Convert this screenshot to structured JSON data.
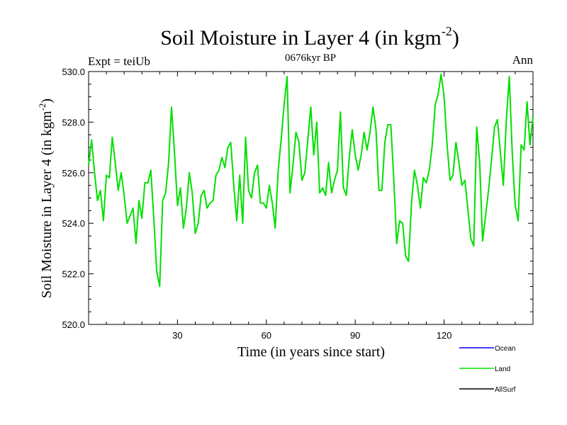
{
  "chart_data": {
    "type": "line",
    "title": "Soil Moisture in Layer 4 (in kgm",
    "title_sup": "-2",
    "title_close": ")",
    "subtitle_left": "Expt = teiUb",
    "subtitle_center": "0676kyr BP",
    "subtitle_right": "Ann",
    "xlabel": "Time (in years since start)",
    "ylabel": "Soil Moisture in Layer 4 (in kgm",
    "ylabel_sup": "-2",
    "ylabel_close": ")",
    "xlim": [
      0,
      150
    ],
    "ylim": [
      520,
      530
    ],
    "x_ticks": [
      30,
      60,
      90,
      120
    ],
    "x_tick_labels": [
      "30",
      "60",
      "90",
      "120"
    ],
    "y_ticks": [
      520,
      522,
      524,
      526,
      528,
      530
    ],
    "y_tick_labels": [
      "520.0",
      "522.0",
      "524.0",
      "526.0",
      "528.0",
      "530.0"
    ],
    "legend": [
      {
        "name": "Ocean",
        "color": "#0000ff"
      },
      {
        "name": "Land",
        "color": "#00e000"
      },
      {
        "name": "AllSurf",
        "color": "#000000"
      }
    ],
    "series": [
      {
        "name": "Land",
        "color": "#00e000",
        "x": [
          0,
          1,
          2,
          3,
          4,
          5,
          6,
          7,
          8,
          9,
          10,
          11,
          12,
          13,
          14,
          15,
          16,
          17,
          18,
          19,
          20,
          21,
          22,
          23,
          24,
          25,
          26,
          27,
          28,
          29,
          30,
          31,
          32,
          33,
          34,
          35,
          36,
          37,
          38,
          39,
          40,
          41,
          42,
          43,
          44,
          45,
          46,
          47,
          48,
          49,
          50,
          51,
          52,
          53,
          54,
          55,
          56,
          57,
          58,
          59,
          60,
          61,
          62,
          63,
          64,
          65,
          66,
          67,
          68,
          69,
          70,
          71,
          72,
          73,
          74,
          75,
          76,
          77,
          78,
          79,
          80,
          81,
          82,
          83,
          84,
          85,
          86,
          87,
          88,
          89,
          90,
          91,
          92,
          93,
          94,
          95,
          96,
          97,
          98,
          99,
          100,
          101,
          102,
          103,
          104,
          105,
          106,
          107,
          108,
          109,
          110,
          111,
          112,
          113,
          114,
          115,
          116,
          117,
          118,
          119,
          120,
          121,
          122,
          123,
          124,
          125,
          126,
          127,
          128,
          129,
          130,
          131,
          132,
          133,
          134,
          135,
          136,
          137,
          138,
          139,
          140,
          141,
          142,
          143,
          144,
          145,
          146,
          147,
          148,
          149,
          150
        ],
        "values": [
          526.3,
          527.3,
          526.0,
          524.9,
          525.3,
          524.1,
          525.9,
          525.8,
          527.4,
          526.4,
          525.3,
          526.0,
          525.1,
          524.0,
          524.3,
          524.6,
          523.2,
          524.9,
          524.2,
          525.6,
          525.6,
          526.1,
          524.2,
          522.1,
          521.5,
          524.9,
          525.2,
          526.4,
          528.6,
          526.8,
          524.7,
          525.4,
          523.8,
          524.6,
          526.0,
          525.2,
          523.6,
          524.0,
          525.1,
          525.3,
          524.6,
          524.8,
          524.9,
          525.9,
          526.1,
          526.6,
          526.2,
          527.0,
          527.2,
          525.5,
          524.1,
          525.9,
          524.0,
          527.4,
          525.3,
          525.0,
          526.0,
          526.3,
          524.8,
          524.8,
          524.6,
          525.5,
          524.8,
          523.8,
          526.1,
          527.3,
          528.7,
          529.8,
          525.2,
          526.3,
          527.6,
          527.2,
          525.7,
          526.0,
          527.3,
          528.6,
          526.7,
          528.0,
          525.2,
          525.4,
          525.1,
          526.4,
          525.2,
          525.7,
          526.1,
          528.4,
          525.4,
          525.1,
          526.6,
          527.7,
          526.7,
          526.1,
          526.7,
          527.6,
          526.9,
          527.6,
          528.6,
          527.7,
          525.3,
          525.3,
          527.2,
          527.9,
          527.9,
          525.8,
          523.2,
          524.1,
          524.0,
          522.7,
          522.5,
          524.8,
          526.1,
          525.5,
          524.6,
          525.8,
          525.6,
          526.1,
          527.1,
          528.7,
          529.1,
          529.9,
          529.0,
          527.1,
          525.7,
          525.9,
          527.2,
          526.4,
          525.5,
          525.7,
          524.6,
          523.4,
          523.1,
          527.8,
          526.4,
          523.3,
          524.3,
          525.3,
          526.5,
          527.8,
          528.1,
          526.8,
          525.5,
          528.1,
          529.8,
          526.8,
          524.7,
          524.1,
          527.1,
          526.9,
          528.8,
          527.1,
          528.2
        ]
      }
    ]
  }
}
